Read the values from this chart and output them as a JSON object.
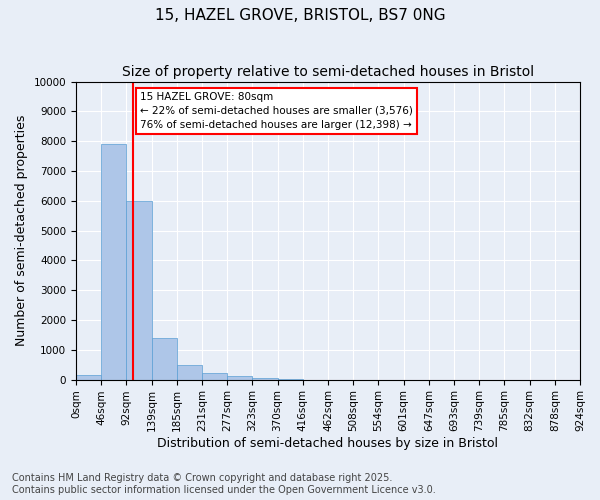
{
  "title": "15, HAZEL GROVE, BRISTOL, BS7 0NG",
  "subtitle": "Size of property relative to semi-detached houses in Bristol",
  "xlabel": "Distribution of semi-detached houses by size in Bristol",
  "ylabel": "Number of semi-detached properties",
  "bar_values": [
    150,
    7900,
    6000,
    1400,
    500,
    220,
    130,
    60,
    10,
    0,
    0,
    0,
    0,
    0,
    0,
    0,
    0,
    0,
    0,
    0
  ],
  "bin_labels": [
    "0sqm",
    "46sqm",
    "92sqm",
    "139sqm",
    "185sqm",
    "231sqm",
    "277sqm",
    "323sqm",
    "370sqm",
    "416sqm",
    "462sqm",
    "508sqm",
    "554sqm",
    "601sqm",
    "647sqm",
    "693sqm",
    "739sqm",
    "785sqm",
    "832sqm",
    "878sqm",
    "924sqm"
  ],
  "bar_color": "#aec6e8",
  "bar_edge_color": "#5a9fd4",
  "vline_x": 1.75,
  "vline_color": "red",
  "annotation_text": "15 HAZEL GROVE: 80sqm\n← 22% of semi-detached houses are smaller (3,576)\n76% of semi-detached houses are larger (12,398) →",
  "annotation_box_color": "white",
  "annotation_box_edge": "red",
  "ylim": [
    0,
    10000
  ],
  "yticks": [
    0,
    1000,
    2000,
    3000,
    4000,
    5000,
    6000,
    7000,
    8000,
    9000,
    10000
  ],
  "footer_line1": "Contains HM Land Registry data © Crown copyright and database right 2025.",
  "footer_line2": "Contains public sector information licensed under the Open Government Licence v3.0.",
  "bg_color": "#e8eef7",
  "plot_bg_color": "#e8eef7",
  "title_fontsize": 11,
  "subtitle_fontsize": 10,
  "axis_label_fontsize": 9,
  "tick_fontsize": 7.5,
  "footer_fontsize": 7
}
